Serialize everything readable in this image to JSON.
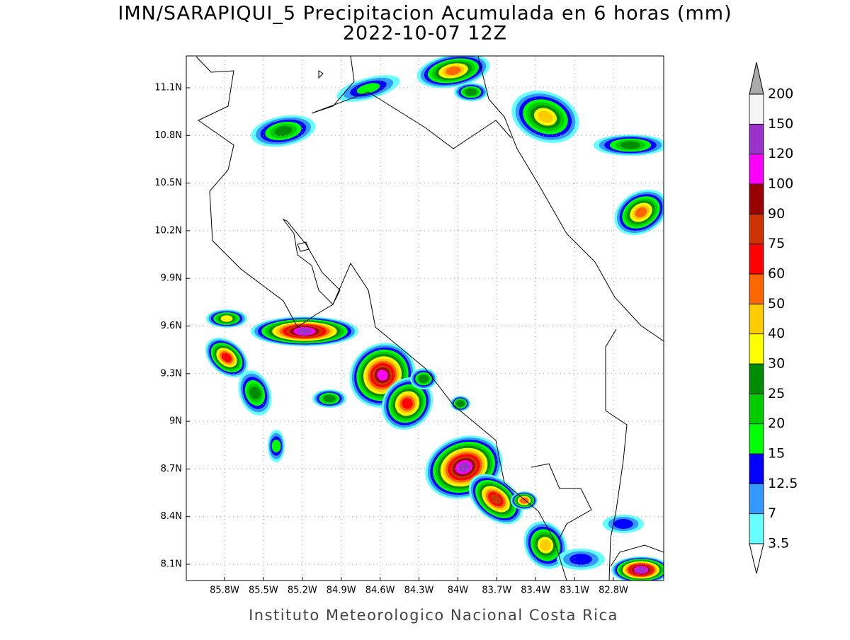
{
  "title": "IMN/SARAPIQUI_5 Precipitacion Acumulada en 6 horas (mm)",
  "subtitle": "2022-10-07 12Z",
  "map": {
    "lat_ticks": [
      "11.1N",
      "10.8N",
      "10.5N",
      "10.2N",
      "9.9N",
      "9.6N",
      "9.3N",
      "9N",
      "8.7N",
      "8.4N",
      "8.1N"
    ],
    "lon_ticks": [
      "85.8W",
      "85.5W",
      "85.2W",
      "84.9W",
      "84.6W",
      "84.3W",
      "84W",
      "83.7W",
      "83.4W",
      "83.1W",
      "82.8W"
    ]
  },
  "colorbar": {
    "levels": [
      3.5,
      7,
      12.5,
      15,
      20,
      25,
      30,
      40,
      50,
      60,
      75,
      90,
      100,
      120,
      150,
      200
    ],
    "colors": [
      "#66ffff",
      "#3399ff",
      "#0000ff",
      "#00ff00",
      "#00cc00",
      "#008c00",
      "#ffff00",
      "#ffcc00",
      "#ff6600",
      "#ff0000",
      "#cc3300",
      "#990000",
      "#ff00ff",
      "#9933cc",
      "#f5f5f5"
    ],
    "under_color": "#ffffff",
    "over_color": "#aaaaaa"
  },
  "footer": "Instituto Meteorologico Nacional Costa Rica"
}
